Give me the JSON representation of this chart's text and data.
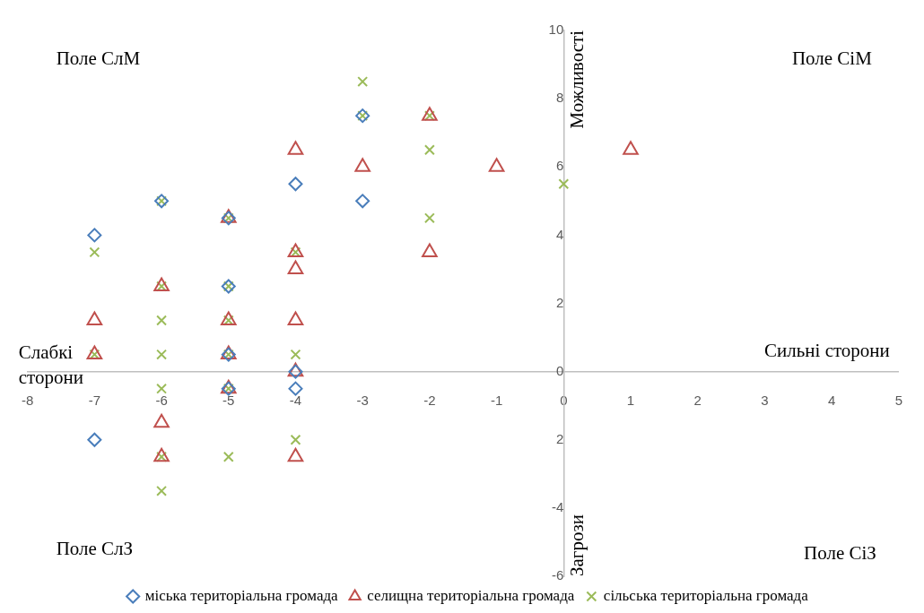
{
  "chart_data": {
    "type": "scatter",
    "xlabel": "Сильні сторони",
    "ylabel": "Можливості",
    "annotations": [
      "Поле СлМ",
      "Поле СіМ",
      "Поле СлЗ",
      "Поле СіЗ",
      "Слабкі сторони",
      "Загрози"
    ],
    "xlim": [
      -8,
      5
    ],
    "xticks": [
      -8,
      -7,
      -6,
      -5,
      -4,
      -3,
      -2,
      -1,
      0,
      1,
      2,
      3,
      4,
      5
    ],
    "ylim": [
      -6,
      10
    ],
    "yticks": [
      -6,
      -4,
      {
        "value": -2,
        "label": "2"
      },
      0,
      2,
      4,
      6,
      8,
      10
    ],
    "grid": false,
    "legend": "bottom",
    "series": [
      {
        "name": "міська територіальна громада",
        "color": "#4a7ebb",
        "marker": "diamond",
        "x": [
          -7,
          -7,
          -6,
          -5,
          -5,
          -5,
          -5,
          -4,
          -4,
          -4,
          -3,
          -3
        ],
        "values": [
          4,
          -2,
          5,
          4.5,
          2.5,
          0.5,
          -0.5,
          5.5,
          0,
          -0.5,
          7.5,
          5
        ]
      },
      {
        "name": "селищна територіальна громада",
        "color": "#c0504d",
        "marker": "triangle",
        "x": [
          -7,
          -7,
          -6,
          -6,
          -6,
          -5,
          -5,
          -5,
          -5,
          -4,
          -4,
          -4,
          -4,
          -4,
          -4,
          -3,
          -2,
          -2,
          -1,
          1
        ],
        "values": [
          1.5,
          0.5,
          2.5,
          -1.5,
          -2.5,
          4.5,
          1.5,
          0.5,
          -0.5,
          6.5,
          3.5,
          3,
          1.5,
          0,
          -2.5,
          6,
          7.5,
          3.5,
          6,
          6.5
        ]
      },
      {
        "name": "сільська територіальна громада",
        "color": "#9bbb59",
        "marker": "cross",
        "x": [
          -7,
          -7,
          -6,
          -6,
          -6,
          -6,
          -6,
          -6,
          -6,
          -5,
          -5,
          -5,
          -5,
          -5,
          -5,
          -4,
          -4,
          -4,
          -3,
          -3,
          -2,
          -2,
          -2,
          0
        ],
        "values": [
          3.5,
          0.5,
          5,
          2.5,
          1.5,
          0.5,
          -0.5,
          -2.5,
          -3.5,
          4.5,
          2.5,
          1.5,
          0.5,
          -0.5,
          -2.5,
          3.5,
          0.5,
          -2,
          8.5,
          7.5,
          7.5,
          6.5,
          4.5,
          5.5
        ]
      }
    ]
  }
}
